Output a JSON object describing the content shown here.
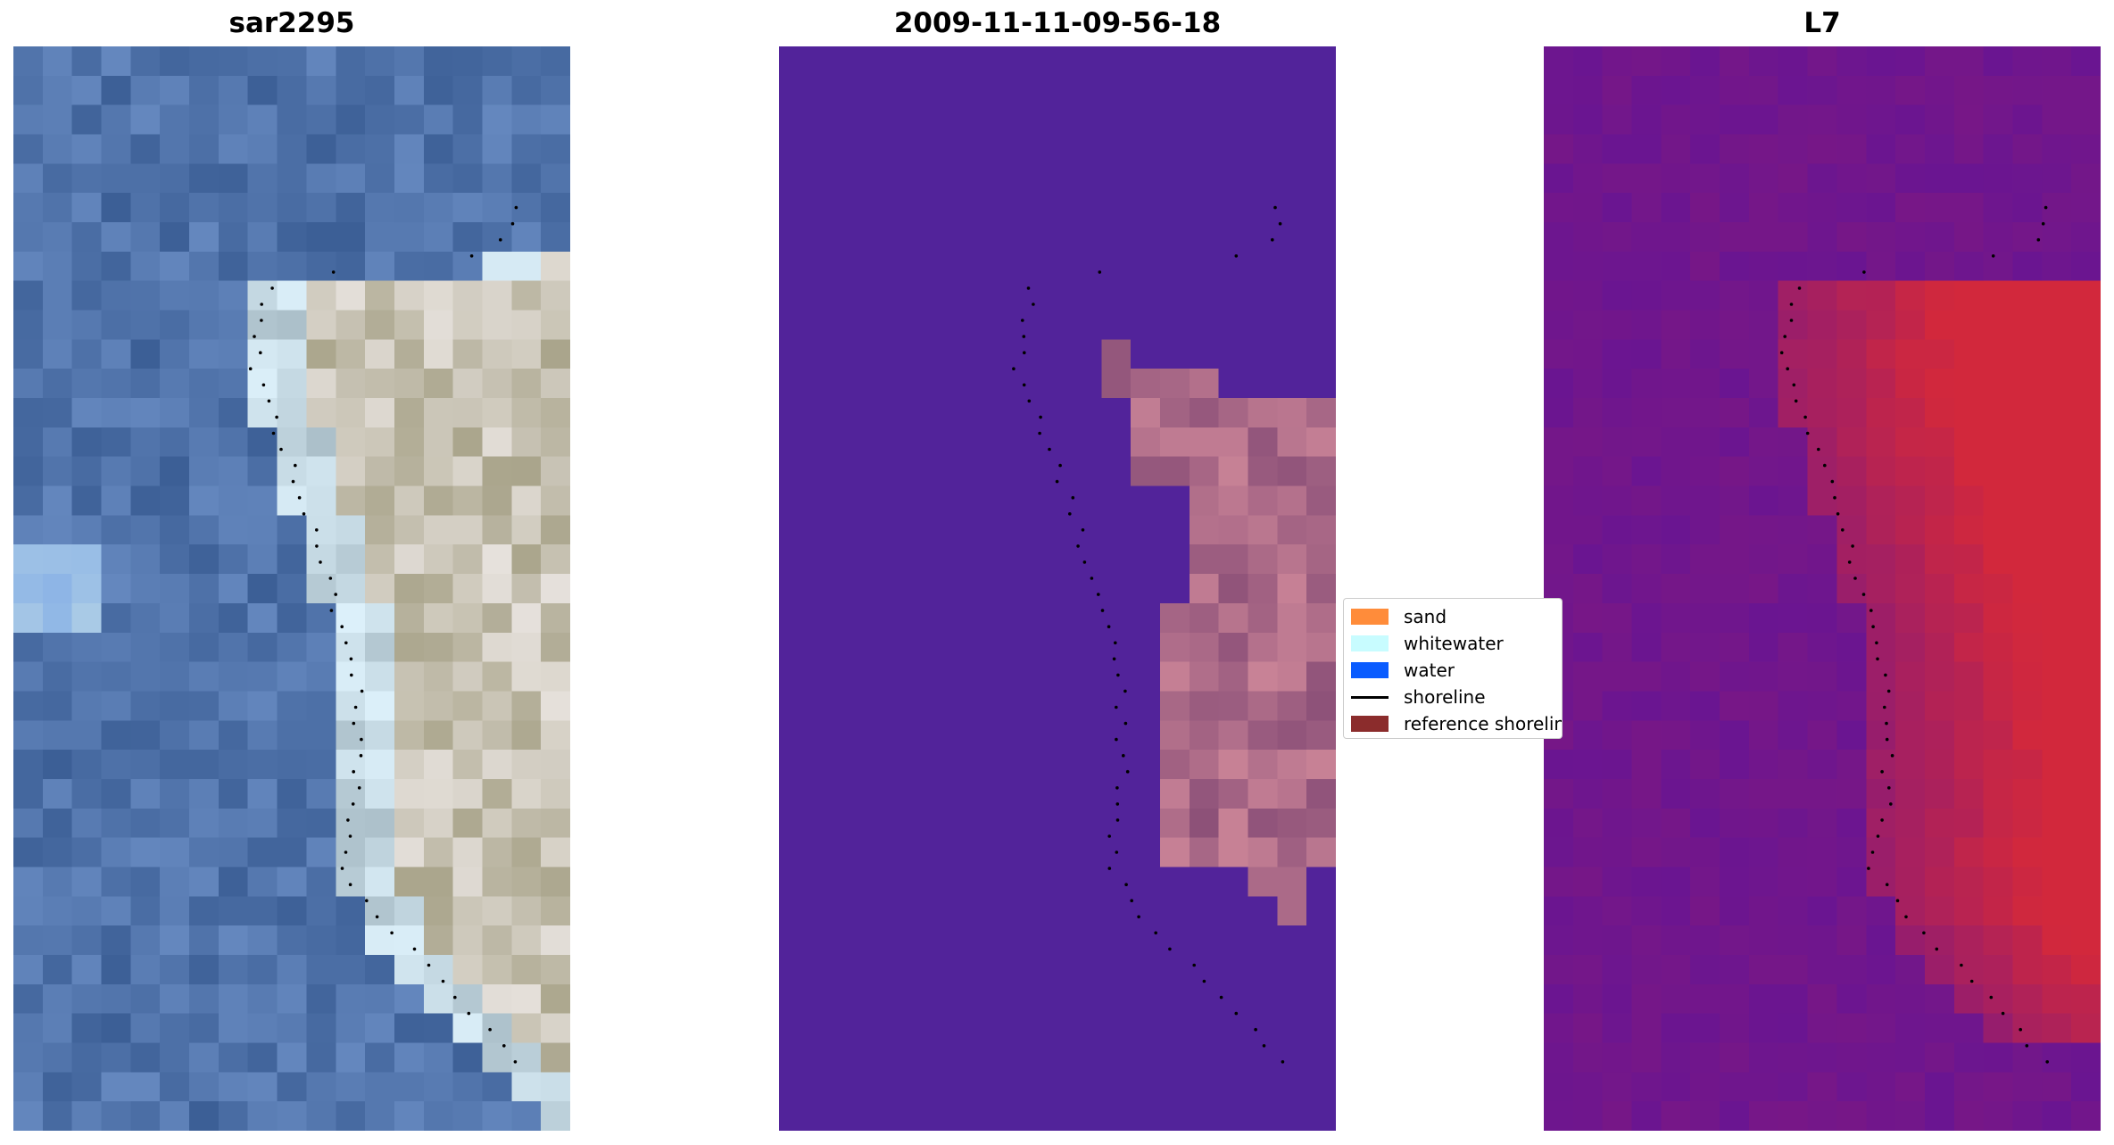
{
  "panels": [
    {
      "title": "sar2295",
      "kind": "rgb"
    },
    {
      "title": "2009-11-11-09-56-18",
      "kind": "classified"
    },
    {
      "title": "L7",
      "kind": "index"
    }
  ],
  "legend": {
    "items": [
      {
        "label": "sand",
        "color": "#ff8c3a",
        "kind": "swatch"
      },
      {
        "label": "whitewater",
        "color": "#c8fcff",
        "kind": "swatch"
      },
      {
        "label": "water",
        "color": "#0a5cff",
        "kind": "swatch"
      },
      {
        "label": "shoreline",
        "color": "#000000",
        "kind": "line"
      },
      {
        "label": "reference shoreline",
        "color": "#8b2c2c",
        "kind": "swatch"
      }
    ]
  },
  "colors": {
    "classified_background": "#52239a",
    "shoreline_points": "#000000"
  }
}
